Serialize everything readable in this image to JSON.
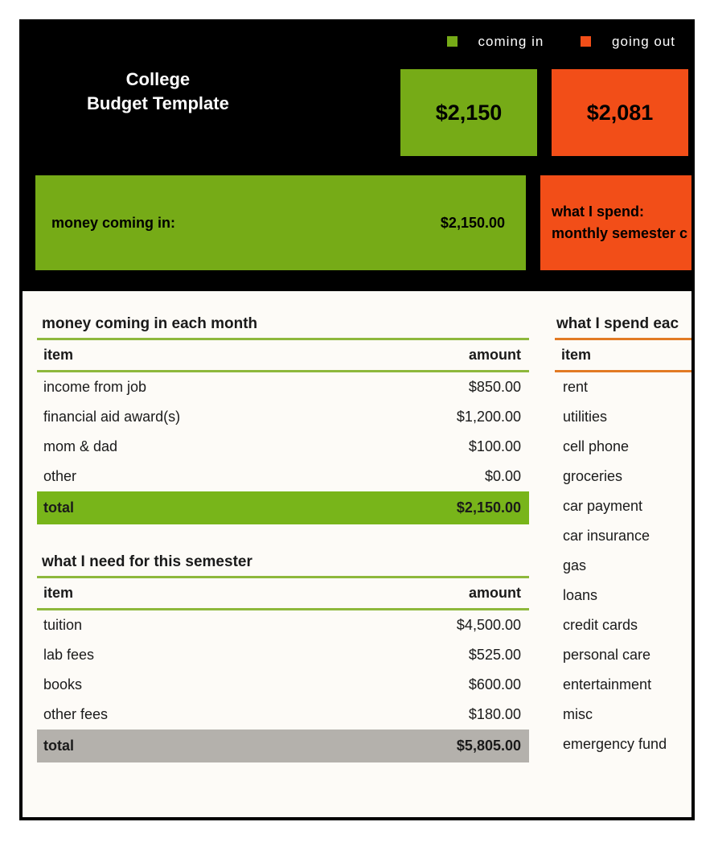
{
  "colors": {
    "green": "#76ab17",
    "orange": "#f24e18",
    "total_green_bg": "#78b51a",
    "total_gray_bg": "#b4b1ac",
    "rule_green": "#8eb83c",
    "rule_orange": "#e27a24",
    "black": "#000000",
    "offwhite": "#fdfbf7"
  },
  "legend": {
    "in_label": "coming in",
    "out_label": "going out"
  },
  "title": {
    "line1": "College",
    "line2": "Budget Template"
  },
  "summary": {
    "in": "$2,150",
    "out": "$2,081"
  },
  "bars": {
    "in_label": "money coming in:",
    "in_amount": "$2,150.00",
    "out_line1": "what I spend:",
    "out_line2": "monthly semester c"
  },
  "income": {
    "title": "money coming in each month",
    "col_item": "item",
    "col_amount": "amount",
    "rows": [
      {
        "item": "income from job",
        "amount": "$850.00"
      },
      {
        "item": "financial aid award(s)",
        "amount": "$1,200.00"
      },
      {
        "item": "mom & dad",
        "amount": "$100.00"
      },
      {
        "item": "other",
        "amount": "$0.00"
      }
    ],
    "total_label": "total",
    "total_amount": "$2,150.00"
  },
  "semester": {
    "title": "what I need for this semester",
    "col_item": "item",
    "col_amount": "amount",
    "rows": [
      {
        "item": "tuition",
        "amount": "$4,500.00"
      },
      {
        "item": "lab fees",
        "amount": "$525.00"
      },
      {
        "item": "books",
        "amount": "$600.00"
      },
      {
        "item": "other fees",
        "amount": "$180.00"
      }
    ],
    "total_label": "total",
    "total_amount": "$5,805.00"
  },
  "spend": {
    "title": "what I spend eac",
    "col_item": "item",
    "items": [
      "rent",
      "utilities",
      "cell phone",
      "groceries",
      "car payment",
      "car insurance",
      "gas",
      "loans",
      "credit cards",
      "personal care",
      "entertainment",
      "misc",
      "emergency fund"
    ]
  }
}
